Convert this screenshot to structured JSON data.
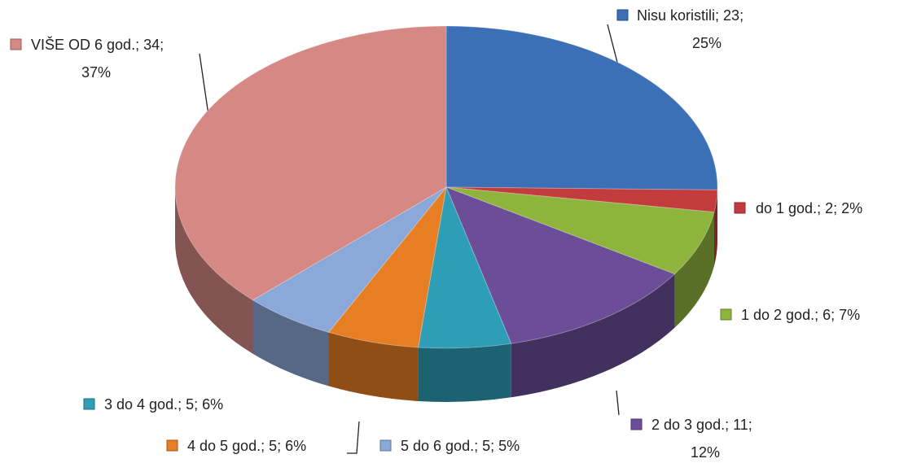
{
  "chart_data": {
    "type": "pie",
    "categories": [
      "Nisu koristili",
      "do 1 god.",
      "1 do 2 god.",
      "2 do 3 god.",
      "3 do 4 god.",
      "4 do 5 god.",
      "5  do 6 god.",
      "VIŠE OD 6 god."
    ],
    "values": [
      23,
      2,
      6,
      11,
      5,
      5,
      5,
      34
    ],
    "percents": [
      25,
      2,
      7,
      12,
      6,
      6,
      5,
      37
    ],
    "percent_labels": [
      "25%",
      "2%",
      "7%",
      "12%",
      "6%",
      "6%",
      "5%",
      "37%"
    ],
    "label_separator": "; ",
    "colors": [
      "#3b6fb6",
      "#c23b3d",
      "#8fb43d",
      "#6b4d98",
      "#2e9eb7",
      "#e77e23",
      "#8aa8d8",
      "#d58884"
    ]
  }
}
